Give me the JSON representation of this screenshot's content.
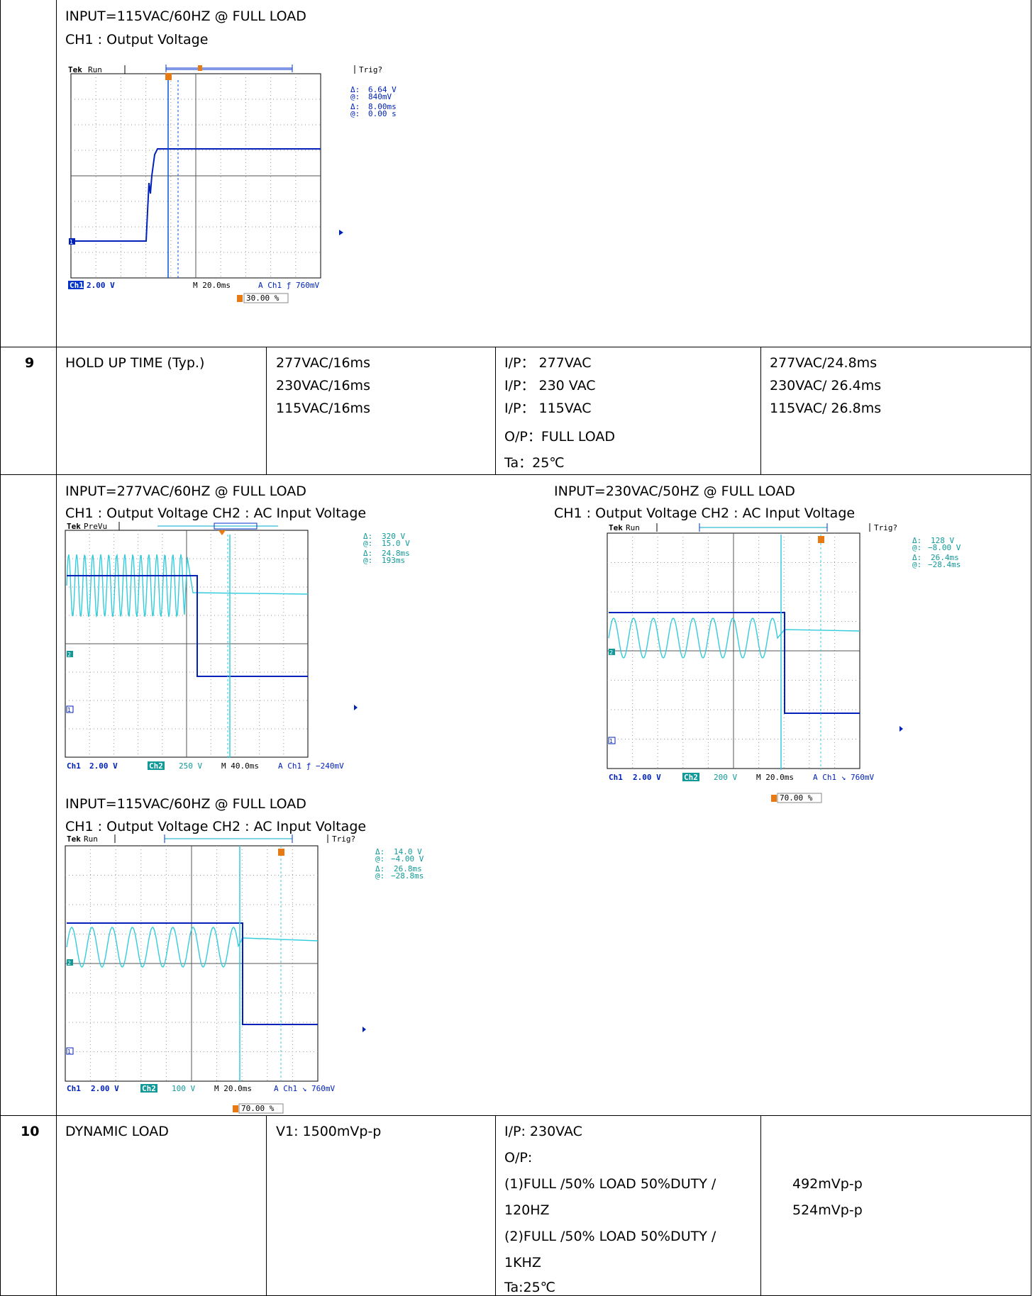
{
  "block1": {
    "caption1": "INPUT=115VAC/60HZ @ FULL LOAD",
    "caption2": "CH1 : Output Voltage",
    "scope": {
      "brand": "Tek",
      "state": "Run",
      "trig": "Trig?",
      "meas": [
        "Δ:",
        "6.64 V",
        "@:",
        "840mV",
        "Δ:",
        "8.00ms",
        "@:",
        "0.00 s"
      ],
      "ch1": "Ch1",
      "ch1_scale": "2.00 V",
      "timebase": "M 20.0ms",
      "trig_info": "A  Ch1  ƒ   760mV",
      "trig_pos": "30.00 %"
    }
  },
  "row9": {
    "num": "9",
    "item": "HOLD UP TIME (Typ.)",
    "spec": [
      "277VAC/16ms",
      "230VAC/16ms",
      "115VAC/16ms"
    ],
    "cond": [
      "I/P： 277VAC",
      "I/P： 230 VAC",
      "I/P： 115VAC",
      "O/P：FULL LOAD",
      "Ta：25℃"
    ],
    "result": [
      "277VAC/24.8ms",
      "230VAC/ 26.4ms",
      "115VAC/ 26.8ms"
    ]
  },
  "block2": {
    "a": {
      "caption1": "INPUT=277VAC/60HZ @ FULL LOAD",
      "caption2": "CH1 : Output Voltage CH2 : AC Input Voltage",
      "scope": {
        "brand": "Tek",
        "state": "PreVu",
        "meas": [
          "Δ:",
          "320 V",
          "@:",
          "15.0 V",
          "Δ:",
          "24.8ms",
          "@:",
          "193ms"
        ],
        "ch1": "Ch1",
        "ch1_scale": "2.00 V",
        "ch2": "Ch2",
        "ch2_scale": "250 V",
        "timebase": "M 40.0ms",
        "trig_info": "A  Ch1  ƒ  −240mV"
      }
    },
    "b": {
      "caption1": "INPUT=230VAC/50HZ @ FULL LOAD",
      "caption2": "CH1 : Output Voltage CH2 : AC Input Voltage",
      "scope": {
        "brand": "Tek",
        "state": "Run",
        "trig": "Trig?",
        "meas": [
          "Δ:",
          "128 V",
          "@:",
          "−8.00 V",
          "Δ:",
          "26.4ms",
          "@:",
          "−28.4ms"
        ],
        "ch1": "Ch1",
        "ch1_scale": "2.00 V",
        "ch2": "Ch2",
        "ch2_scale": "200 V",
        "timebase": "M 20.0ms",
        "trig_info": "A  Ch1  ↘   760mV",
        "trig_pos": "70.00 %"
      }
    },
    "c": {
      "caption1": "INPUT=115VAC/60HZ @ FULL LOAD",
      "caption2": "CH1 : Output Voltage CH2 : AC Input Voltage",
      "scope": {
        "brand": "Tek",
        "state": "Run",
        "trig": "Trig?",
        "meas": [
          "Δ:",
          "14.0 V",
          "@:",
          "−4.00 V",
          "Δ:",
          "26.8ms",
          "@:",
          "−28.8ms"
        ],
        "ch1": "Ch1",
        "ch1_scale": "2.00 V",
        "ch2": "Ch2",
        "ch2_scale": "100 V",
        "timebase": "M 20.0ms",
        "trig_info": "A  Ch1  ↘   760mV",
        "trig_pos": "70.00 %"
      }
    }
  },
  "row10": {
    "num": "10",
    "item": "DYNAMIC LOAD",
    "spec": "V1: 1500mVp-p",
    "cond": [
      "I/P: 230VAC",
      "O/P:",
      "(1)FULL  /50%  LOAD  50%DUTY  /",
      "120HZ",
      "(2)FULL  /50%  LOAD  50%DUTY  /",
      "1KHZ",
      "Ta:25℃"
    ],
    "result": [
      "492mVp-p",
      "524mVp-p"
    ]
  }
}
